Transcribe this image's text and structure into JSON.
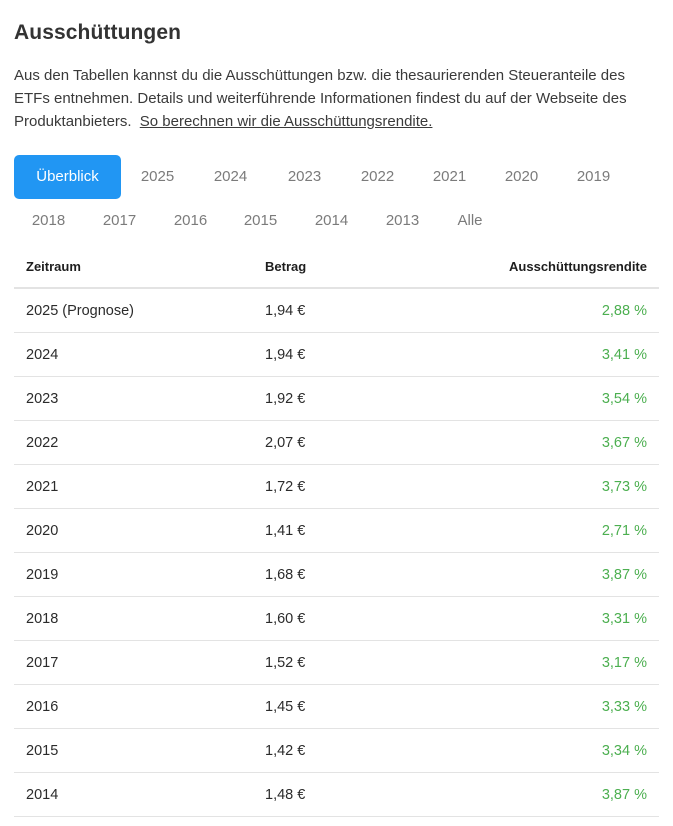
{
  "title": "Ausschüttungen",
  "description": "Aus den Tabellen kannst du die Ausschüttungen bzw. die thesaurierenden Steueranteile des ETFs entnehmen. Details und weiterführende Informationen findest du auf der Webseite des Produktanbieters.",
  "description_link": "So berechnen wir die Ausschüttungsrendite.",
  "tabs": [
    "Überblick",
    "2025",
    "2024",
    "2023",
    "2022",
    "2021",
    "2020",
    "2019",
    "2018",
    "2017",
    "2016",
    "2015",
    "2014",
    "2013",
    "Alle"
  ],
  "active_tab": "Überblick",
  "table": {
    "headers": {
      "period": "Zeitraum",
      "amount": "Betrag",
      "yield": "Ausschüttungsrendite"
    },
    "rows": [
      {
        "period": "2025 (Prognose)",
        "amount": "1,94 €",
        "yield": "2,88 %"
      },
      {
        "period": "2024",
        "amount": "1,94 €",
        "yield": "3,41 %"
      },
      {
        "period": "2023",
        "amount": "1,92 €",
        "yield": "3,54 %"
      },
      {
        "period": "2022",
        "amount": "2,07 €",
        "yield": "3,67 %"
      },
      {
        "period": "2021",
        "amount": "1,72 €",
        "yield": "3,73 %"
      },
      {
        "period": "2020",
        "amount": "1,41 €",
        "yield": "2,71 %"
      },
      {
        "period": "2019",
        "amount": "1,68 €",
        "yield": "3,87 %"
      },
      {
        "period": "2018",
        "amount": "1,60 €",
        "yield": "3,31 %"
      },
      {
        "period": "2017",
        "amount": "1,52 €",
        "yield": "3,17 %"
      },
      {
        "period": "2016",
        "amount": "1,45 €",
        "yield": "3,33 %"
      },
      {
        "period": "2015",
        "amount": "1,42 €",
        "yield": "3,34 %"
      },
      {
        "period": "2014",
        "amount": "1,48 €",
        "yield": "3,87 %"
      }
    ]
  },
  "colors": {
    "accent": "#2196f3",
    "positive": "#4caf50"
  }
}
